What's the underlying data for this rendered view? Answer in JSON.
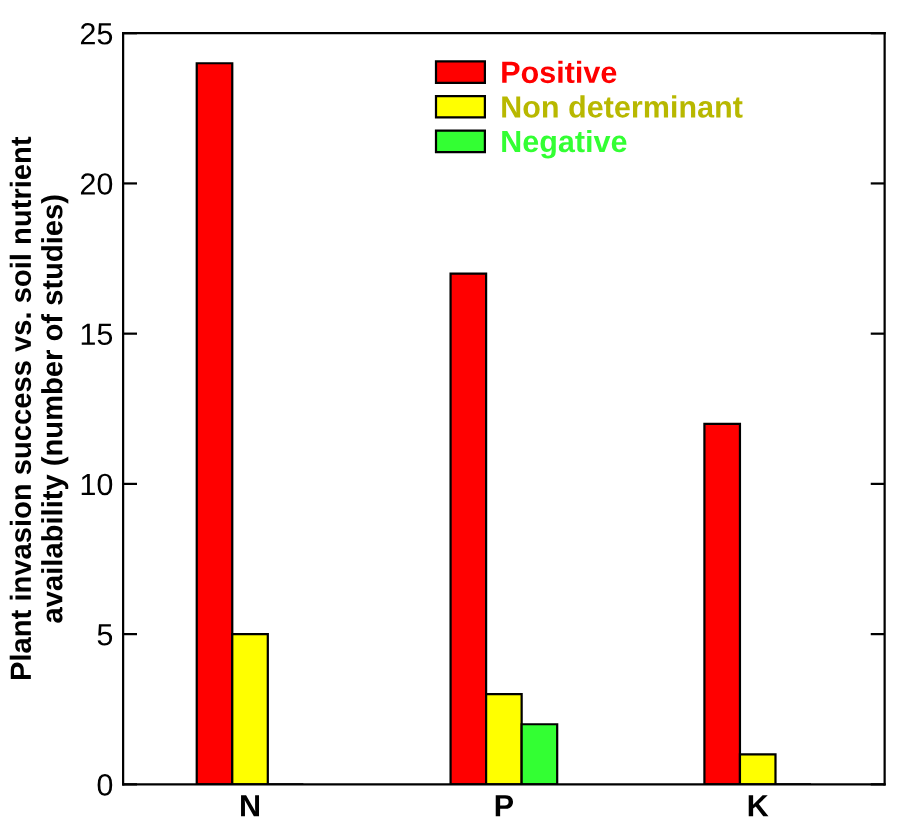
{
  "chart_data": {
    "type": "bar",
    "ylabel": "Plant invasion success vs. soil nutrient\navailability (number of studies)",
    "categories": [
      "N",
      "P",
      "K"
    ],
    "series": [
      {
        "name": "Positive",
        "color": "#ff0000",
        "values": [
          24,
          17,
          12
        ]
      },
      {
        "name": "Non determinant",
        "color": "#ffff00",
        "values": [
          5,
          3,
          1
        ]
      },
      {
        "name": "Negative",
        "color": "#33ff33",
        "values": [
          0,
          2,
          0
        ]
      }
    ],
    "ylim": [
      0,
      25
    ],
    "yticks": [
      0,
      5,
      10,
      15,
      20,
      25
    ],
    "grid": false,
    "legend": "top right"
  }
}
